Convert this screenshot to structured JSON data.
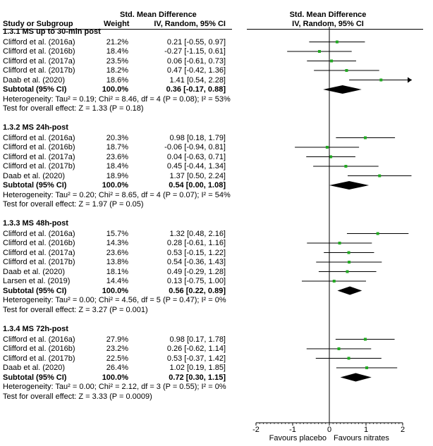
{
  "header": {
    "smd_left": "Std. Mean Difference",
    "smd_right": "Std. Mean Difference",
    "study_col": "Study or Subgroup",
    "weight_col": "Weight",
    "method_left": "IV, Random, 95% CI",
    "method_right": "IV, Random, 95% CI"
  },
  "chart_data": {
    "type": "forest",
    "x_axis": {
      "min": -2,
      "max": 2,
      "ticks": [
        "-2",
        "-1",
        "0",
        "1",
        "2"
      ],
      "label_left": "Favours placebo",
      "label_right": "Favours nitrates"
    },
    "colors": {
      "study_marker": "#22aa22",
      "subtotal_marker": "#000000",
      "line": "#000000"
    },
    "groups": [
      {
        "title": "1.3.1 MS up to 30-min post",
        "studies": [
          {
            "name": "Clifford et al. (2016a)",
            "weight": "21.2%",
            "ci_text": "0.21 [-0.55, 0.97]",
            "est": 0.21,
            "lo": -0.55,
            "hi": 0.97
          },
          {
            "name": "Clifford et al. (2016b)",
            "weight": "18.4%",
            "ci_text": "-0.27 [-1.15, 0.61]",
            "est": -0.27,
            "lo": -1.15,
            "hi": 0.61
          },
          {
            "name": "Clifford et al. (2017a)",
            "weight": "23.5%",
            "ci_text": "0.06 [-0.61, 0.73]",
            "est": 0.06,
            "lo": -0.61,
            "hi": 0.73
          },
          {
            "name": "Clifford et al. (2017b)",
            "weight": "18.2%",
            "ci_text": "0.47 [-0.42, 1.36]",
            "est": 0.47,
            "lo": -0.42,
            "hi": 1.36
          },
          {
            "name": "Daab et al. (2020)",
            "weight": "18.6%",
            "ci_text": "1.41 [0.54, 2.28]",
            "est": 1.41,
            "lo": 0.54,
            "hi": 2.28
          }
        ],
        "subtotal": {
          "label": "Subtotal (95% CI)",
          "weight": "100.0%",
          "ci_text": "0.36 [-0.17, 0.88]",
          "est": 0.36,
          "lo": -0.17,
          "hi": 0.88
        },
        "heterogeneity": "Heterogeneity: Tau² = 0.19; Chi² = 8.46, df = 4 (P = 0.08); I² = 53%",
        "overall": "Test for overall effect: Z = 1.33 (P = 0.18)"
      },
      {
        "title": "1.3.2 MS 24h-post",
        "studies": [
          {
            "name": "Clifford et al. (2016a)",
            "weight": "20.3%",
            "ci_text": "0.98 [0.18, 1.79]",
            "est": 0.98,
            "lo": 0.18,
            "hi": 1.79
          },
          {
            "name": "Clifford et al. (2016b)",
            "weight": "18.7%",
            "ci_text": "-0.06 [-0.94, 0.81]",
            "est": -0.06,
            "lo": -0.94,
            "hi": 0.81
          },
          {
            "name": "Clifford et al. (2017a)",
            "weight": "23.6%",
            "ci_text": "0.04 [-0.63, 0.71]",
            "est": 0.04,
            "lo": -0.63,
            "hi": 0.71
          },
          {
            "name": "Clifford et al. (2017b)",
            "weight": "18.4%",
            "ci_text": "0.45 [-0.44, 1.34]",
            "est": 0.45,
            "lo": -0.44,
            "hi": 1.34
          },
          {
            "name": "Daab et al. (2020)",
            "weight": "18.9%",
            "ci_text": "1.37 [0.50, 2.24]",
            "est": 1.37,
            "lo": 0.5,
            "hi": 2.24
          }
        ],
        "subtotal": {
          "label": "Subtotal (95% CI)",
          "weight": "100.0%",
          "ci_text": "0.54 [0.00, 1.08]",
          "est": 0.54,
          "lo": 0.0,
          "hi": 1.08
        },
        "heterogeneity": "Heterogeneity: Tau² = 0.20; Chi² = 8.65, df = 4 (P = 0.07); I² = 54%",
        "overall": "Test for overall effect: Z = 1.97 (P = 0.05)"
      },
      {
        "title": "1.3.3 MS 48h-post",
        "studies": [
          {
            "name": "Clifford et al. (2016a)",
            "weight": "15.7%",
            "ci_text": "1.32 [0.48, 2.16]",
            "est": 1.32,
            "lo": 0.48,
            "hi": 2.16
          },
          {
            "name": "Clifford et al. (2016b)",
            "weight": "14.3%",
            "ci_text": "0.28 [-0.61, 1.16]",
            "est": 0.28,
            "lo": -0.61,
            "hi": 1.16
          },
          {
            "name": "Clifford et al. (2017a)",
            "weight": "23.6%",
            "ci_text": "0.53 [-0.15, 1.22]",
            "est": 0.53,
            "lo": -0.15,
            "hi": 1.22
          },
          {
            "name": "Clifford et al. (2017b)",
            "weight": "13.8%",
            "ci_text": "0.54 [-0.36, 1.43]",
            "est": 0.54,
            "lo": -0.36,
            "hi": 1.43
          },
          {
            "name": "Daab et al. (2020)",
            "weight": "18.1%",
            "ci_text": "0.49 [-0.29, 1.28]",
            "est": 0.49,
            "lo": -0.29,
            "hi": 1.28
          },
          {
            "name": "Larsen et al. (2019)",
            "weight": "14.4%",
            "ci_text": "0.13 [-0.75, 1.00]",
            "est": 0.13,
            "lo": -0.75,
            "hi": 1.0
          }
        ],
        "subtotal": {
          "label": "Subtotal (95% CI)",
          "weight": "100.0%",
          "ci_text": "0.56 [0.22, 0.89]",
          "est": 0.56,
          "lo": 0.22,
          "hi": 0.89
        },
        "heterogeneity": "Heterogeneity: Tau² = 0.00; Chi² = 4.56, df = 5 (P = 0.47); I² = 0%",
        "overall": "Test for overall effect: Z = 3.27 (P = 0.001)"
      },
      {
        "title": "1.3.4 MS 72h-post",
        "studies": [
          {
            "name": "Clifford et al. (2016a)",
            "weight": "27.9%",
            "ci_text": "0.98 [0.17, 1.78]",
            "est": 0.98,
            "lo": 0.17,
            "hi": 1.78
          },
          {
            "name": "Clifford et al. (2016b)",
            "weight": "23.2%",
            "ci_text": "0.26 [-0.62, 1.14]",
            "est": 0.26,
            "lo": -0.62,
            "hi": 1.14
          },
          {
            "name": "Clifford et al. (2017b)",
            "weight": "22.5%",
            "ci_text": "0.53 [-0.37, 1.42]",
            "est": 0.53,
            "lo": -0.37,
            "hi": 1.42
          },
          {
            "name": "Daab et al. (2020)",
            "weight": "26.4%",
            "ci_text": "1.02 [0.19, 1.85]",
            "est": 1.02,
            "lo": 0.19,
            "hi": 1.85
          }
        ],
        "subtotal": {
          "label": "Subtotal (95% CI)",
          "weight": "100.0%",
          "ci_text": "0.72 [0.30, 1.15]",
          "est": 0.72,
          "lo": 0.3,
          "hi": 1.15
        },
        "heterogeneity": "Heterogeneity: Tau² = 0.00; Chi² = 2.12, df = 3 (P = 0.55); I² = 0%",
        "overall": "Test for overall effect: Z = 3.33 (P = 0.0009)"
      }
    ]
  }
}
